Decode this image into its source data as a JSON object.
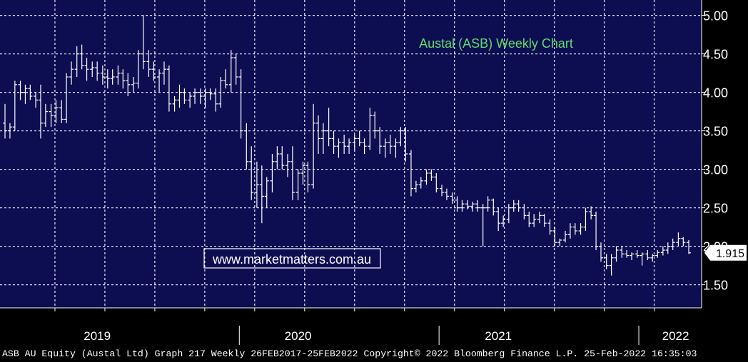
{
  "colors": {
    "plot_background": "#0d0d52",
    "grid": "#ffffff",
    "bars": "#ffffff",
    "title": "#5fdc68",
    "watermark_text": "#ffffff",
    "watermark_border": "#ffffff",
    "axis_text": "#ffffff",
    "last_price_box": "#ffffff",
    "last_price_text": "#000000"
  },
  "watermark": {
    "text": "www.marketmatters.com.au"
  },
  "footer": {
    "text": "ASB AU Equity (Austal Ltd) Graph 217  Weekly 26FEB2017-25FEB2022  Copyright© 2022 Bloomberg Finance L.P.  25-Feb-2022 16:35:03"
  },
  "chart_data": {
    "type": "ohlc",
    "title": "Austal (ASB) Weekly Chart",
    "x_range": [
      "2018-09-28",
      "2022-02-25"
    ],
    "ylim": [
      1.2,
      5.2
    ],
    "y_axis_position": "right",
    "y_ticks": [
      "1.50",
      "2.00",
      "2.50",
      "3.00",
      "3.50",
      "4.00",
      "4.50",
      "5.00"
    ],
    "x_year_labels": [
      {
        "label": "2019",
        "date": "2019-03-15"
      },
      {
        "label": "2020",
        "date": "2020-03-15"
      },
      {
        "label": "2021",
        "date": "2021-03-15"
      },
      {
        "label": "2022",
        "date": "2022-02-01"
      }
    ],
    "year_separators": [
      "2019-11-29",
      "2020-11-27",
      "2021-11-26"
    ],
    "grid_dates": [
      "2018-12-28",
      "2019-03-29",
      "2019-06-28",
      "2019-09-27",
      "2019-12-27",
      "2020-03-27",
      "2020-06-26",
      "2020-09-25",
      "2020-12-25",
      "2021-03-26",
      "2021-06-25",
      "2021-09-24",
      "2021-12-24"
    ],
    "grid": true,
    "last_price": 1.915,
    "last_price_label": "1.915",
    "series": [
      {
        "values": [
          [
            3.6,
            3.85,
            3.4,
            3.5
          ],
          [
            3.5,
            3.6,
            3.4,
            3.55
          ],
          [
            3.55,
            4.15,
            3.5,
            4.1
          ],
          [
            4.1,
            4.15,
            3.9,
            4.0
          ],
          [
            4.0,
            4.1,
            3.85,
            4.05
          ],
          [
            4.05,
            4.1,
            3.9,
            3.95
          ],
          [
            3.95,
            4.0,
            3.8,
            3.9
          ],
          [
            3.9,
            4.1,
            3.4,
            3.6
          ],
          [
            3.6,
            3.85,
            3.55,
            3.75
          ],
          [
            3.75,
            3.85,
            3.55,
            3.7
          ],
          [
            3.7,
            3.9,
            3.6,
            3.8
          ],
          [
            3.8,
            3.9,
            3.6,
            3.65
          ],
          [
            3.65,
            4.25,
            3.6,
            4.2
          ],
          [
            4.2,
            4.4,
            4.1,
            4.3
          ],
          [
            4.3,
            4.6,
            4.2,
            4.5
          ],
          [
            4.5,
            4.62,
            4.3,
            4.35
          ],
          [
            4.35,
            4.45,
            4.15,
            4.3
          ],
          [
            4.3,
            4.4,
            4.2,
            4.32
          ],
          [
            4.32,
            4.4,
            4.15,
            4.25
          ],
          [
            4.25,
            4.35,
            4.1,
            4.2
          ],
          [
            4.2,
            4.3,
            4.05,
            4.18
          ],
          [
            4.18,
            4.3,
            4.1,
            4.2
          ],
          [
            4.2,
            4.35,
            4.1,
            4.25
          ],
          [
            4.25,
            4.3,
            4.05,
            4.15
          ],
          [
            4.15,
            4.25,
            3.95,
            4.1
          ],
          [
            4.1,
            4.2,
            4.0,
            4.12
          ],
          [
            4.12,
            4.55,
            4.05,
            4.5
          ],
          [
            4.5,
            5.0,
            4.3,
            4.4
          ],
          [
            4.4,
            4.55,
            4.2,
            4.3
          ],
          [
            4.3,
            4.4,
            4.15,
            4.2
          ],
          [
            4.2,
            4.3,
            4.0,
            4.25
          ],
          [
            4.25,
            4.4,
            4.1,
            4.3
          ],
          [
            4.3,
            4.35,
            3.75,
            3.85
          ],
          [
            3.85,
            3.95,
            3.75,
            3.9
          ],
          [
            3.9,
            4.1,
            3.8,
            4.0
          ],
          [
            4.0,
            4.05,
            3.85,
            3.9
          ],
          [
            3.9,
            4.0,
            3.8,
            3.95
          ],
          [
            3.95,
            4.05,
            3.85,
            4.0
          ],
          [
            4.0,
            4.05,
            3.85,
            3.95
          ],
          [
            3.95,
            4.05,
            3.8,
            4.0
          ],
          [
            4.0,
            4.05,
            3.9,
            3.98
          ],
          [
            3.98,
            4.05,
            3.75,
            3.85
          ],
          [
            3.85,
            4.2,
            3.8,
            4.15
          ],
          [
            4.15,
            4.3,
            4.05,
            4.1
          ],
          [
            4.1,
            4.55,
            4.0,
            4.45
          ],
          [
            4.45,
            4.5,
            4.1,
            4.2
          ],
          [
            4.2,
            4.3,
            3.4,
            3.5
          ],
          [
            3.5,
            3.6,
            3.0,
            3.1
          ],
          [
            3.1,
            3.3,
            2.6,
            2.7
          ],
          [
            2.7,
            3.1,
            2.5,
            2.8
          ],
          [
            2.8,
            3.05,
            2.3,
            2.65
          ],
          [
            2.65,
            2.9,
            2.5,
            2.85
          ],
          [
            2.85,
            3.2,
            2.7,
            3.1
          ],
          [
            3.1,
            3.3,
            3.0,
            3.2
          ],
          [
            3.2,
            3.3,
            3.0,
            3.05
          ],
          [
            3.05,
            3.2,
            2.9,
            3.1
          ],
          [
            3.1,
            3.3,
            2.6,
            2.7
          ],
          [
            2.7,
            3.0,
            2.6,
            2.95
          ],
          [
            2.95,
            3.1,
            2.8,
            3.05
          ],
          [
            3.05,
            3.1,
            2.7,
            2.8
          ],
          [
            2.8,
            3.85,
            2.75,
            3.6
          ],
          [
            3.6,
            3.7,
            3.2,
            3.4
          ],
          [
            3.4,
            3.6,
            3.2,
            3.5
          ],
          [
            3.5,
            3.8,
            3.3,
            3.4
          ],
          [
            3.4,
            3.5,
            3.2,
            3.3
          ],
          [
            3.3,
            3.4,
            3.15,
            3.35
          ],
          [
            3.35,
            3.45,
            3.2,
            3.3
          ],
          [
            3.3,
            3.4,
            3.2,
            3.35
          ],
          [
            3.35,
            3.45,
            3.25,
            3.4
          ],
          [
            3.4,
            3.5,
            3.3,
            3.35
          ],
          [
            3.35,
            3.4,
            3.2,
            3.3
          ],
          [
            3.3,
            3.8,
            3.25,
            3.7
          ],
          [
            3.7,
            3.75,
            3.4,
            3.5
          ],
          [
            3.5,
            3.55,
            3.2,
            3.3
          ],
          [
            3.3,
            3.4,
            3.15,
            3.35
          ],
          [
            3.35,
            3.45,
            3.2,
            3.3
          ],
          [
            3.3,
            3.4,
            3.15,
            3.35
          ],
          [
            3.35,
            3.55,
            3.3,
            3.5
          ],
          [
            3.5,
            3.55,
            3.1,
            3.2
          ],
          [
            3.2,
            3.25,
            2.65,
            2.75
          ],
          [
            2.75,
            2.85,
            2.7,
            2.8
          ],
          [
            2.8,
            2.9,
            2.75,
            2.85
          ],
          [
            2.85,
            3.0,
            2.8,
            2.95
          ],
          [
            2.95,
            3.0,
            2.85,
            2.9
          ],
          [
            2.9,
            2.95,
            2.7,
            2.75
          ],
          [
            2.75,
            2.8,
            2.65,
            2.7
          ],
          [
            2.7,
            2.75,
            2.6,
            2.65
          ],
          [
            2.65,
            2.7,
            2.55,
            2.6
          ],
          [
            2.6,
            2.65,
            2.45,
            2.5
          ],
          [
            2.5,
            2.6,
            2.45,
            2.55
          ],
          [
            2.55,
            2.6,
            2.48,
            2.52
          ],
          [
            2.52,
            2.58,
            2.45,
            2.55
          ],
          [
            2.55,
            2.6,
            2.45,
            2.5
          ],
          [
            2.5,
            2.55,
            2.0,
            2.5
          ],
          [
            2.5,
            2.65,
            2.45,
            2.6
          ],
          [
            2.6,
            2.62,
            2.4,
            2.45
          ],
          [
            2.45,
            2.5,
            2.2,
            2.3
          ],
          [
            2.3,
            2.4,
            2.25,
            2.35
          ],
          [
            2.35,
            2.55,
            2.3,
            2.5
          ],
          [
            2.5,
            2.6,
            2.45,
            2.55
          ],
          [
            2.55,
            2.6,
            2.45,
            2.5
          ],
          [
            2.5,
            2.55,
            2.35,
            2.4
          ],
          [
            2.4,
            2.45,
            2.25,
            2.3
          ],
          [
            2.3,
            2.42,
            2.25,
            2.35
          ],
          [
            2.35,
            2.45,
            2.3,
            2.4
          ],
          [
            2.4,
            2.42,
            2.25,
            2.3
          ],
          [
            2.3,
            2.35,
            2.15,
            2.2
          ],
          [
            2.2,
            2.25,
            2.0,
            2.05
          ],
          [
            2.05,
            2.1,
            2.0,
            2.08
          ],
          [
            2.08,
            2.2,
            2.05,
            2.15
          ],
          [
            2.15,
            2.3,
            2.1,
            2.25
          ],
          [
            2.25,
            2.3,
            2.15,
            2.2
          ],
          [
            2.2,
            2.3,
            2.15,
            2.25
          ],
          [
            2.25,
            2.5,
            2.2,
            2.45
          ],
          [
            2.45,
            2.52,
            2.35,
            2.4
          ],
          [
            2.4,
            2.45,
            1.95,
            2.0
          ],
          [
            2.0,
            2.05,
            1.8,
            1.85
          ],
          [
            1.85,
            1.9,
            1.7,
            1.75
          ],
          [
            1.75,
            1.9,
            1.62,
            1.85
          ],
          [
            1.85,
            2.0,
            1.8,
            1.95
          ],
          [
            1.95,
            2.0,
            1.85,
            1.9
          ],
          [
            1.9,
            1.95,
            1.85,
            1.88
          ],
          [
            1.88,
            1.92,
            1.82,
            1.9
          ],
          [
            1.9,
            1.95,
            1.85,
            1.88
          ],
          [
            1.88,
            1.92,
            1.75,
            1.9
          ],
          [
            1.9,
            1.95,
            1.82,
            1.85
          ],
          [
            1.85,
            1.9,
            1.8,
            1.88
          ],
          [
            1.88,
            1.95,
            1.85,
            1.92
          ],
          [
            1.92,
            2.0,
            1.88,
            1.95
          ],
          [
            1.95,
            2.05,
            1.9,
            2.0
          ],
          [
            2.0,
            2.1,
            1.95,
            2.05
          ],
          [
            2.05,
            2.18,
            2.0,
            2.1
          ],
          [
            2.1,
            2.12,
            2.0,
            2.05
          ],
          [
            2.05,
            2.08,
            1.9,
            1.915
          ]
        ]
      }
    ]
  }
}
